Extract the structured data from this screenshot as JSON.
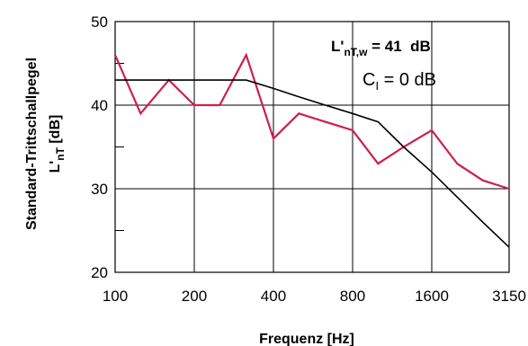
{
  "chart_data": {
    "type": "line",
    "x_ticks": [
      "100",
      "200",
      "400",
      "800",
      "1600",
      "3150"
    ],
    "y_ticks": [
      20,
      30,
      40,
      50
    ],
    "ylim": [
      20,
      50
    ],
    "xlabel": "Frequenz [Hz]",
    "ylabel_line1": "Standard-Trittschallpegel",
    "ylabel_line2_main": "L'",
    "ylabel_line2_sub": "nT",
    "ylabel_line2_unit": "[dB]",
    "x_log_scale": true,
    "grid": true,
    "annotation": {
      "line1_main": "L'",
      "line1_sub": "nT,w",
      "line1_rest": " = 41  dB",
      "line2_main": "C",
      "line2_sub": "I",
      "line2_rest": " = 0 dB"
    },
    "series": [
      {
        "color": "#cc1f4e",
        "x": [
          100,
          125,
          160,
          200,
          250,
          315,
          400,
          500,
          630,
          800,
          1000,
          1250,
          1600,
          2000,
          2500,
          3150
        ],
        "y": [
          46,
          39,
          43,
          40,
          40,
          46,
          36,
          39,
          38,
          37,
          33,
          35,
          37,
          33,
          31,
          30
        ]
      },
      {
        "color": "#000000",
        "x": [
          100,
          125,
          160,
          200,
          250,
          315,
          400,
          500,
          630,
          800,
          1000,
          1250,
          1600,
          2000,
          2500,
          3150
        ],
        "y": [
          43,
          43,
          43,
          43,
          43,
          43,
          42,
          41,
          40,
          39,
          38,
          35,
          32,
          29,
          26,
          23
        ]
      }
    ]
  }
}
